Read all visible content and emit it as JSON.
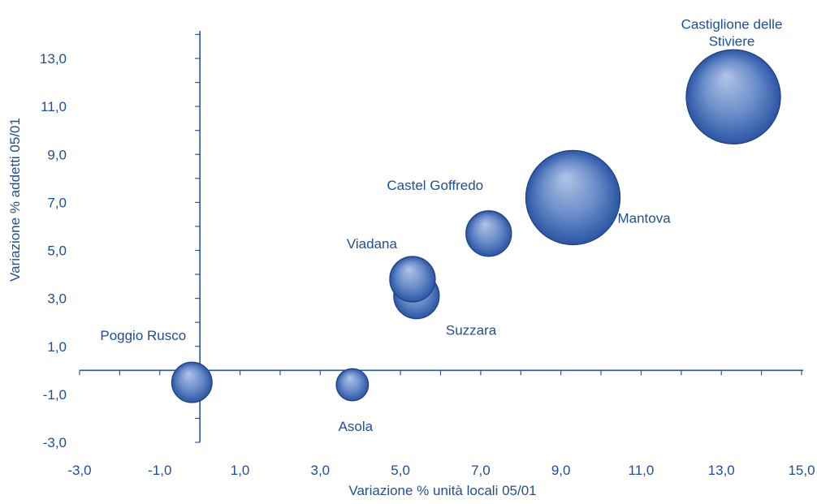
{
  "chart_data": {
    "type": "bubble",
    "title": "",
    "xlabel": "Variazione % unità locali 05/01",
    "ylabel": "Variazione % addetti 05/01",
    "xlim": [
      -3,
      15
    ],
    "ylim": [
      -3,
      14
    ],
    "x_ticks": [
      "-3,0",
      "-1,0",
      "1,0",
      "3,0",
      "5,0",
      "7,0",
      "9,0",
      "11,0",
      "13,0",
      "15,0"
    ],
    "y_ticks": [
      "-3,0",
      "-1,0",
      "1,0",
      "3,0",
      "5,0",
      "7,0",
      "9,0",
      "11,0",
      "13,0"
    ],
    "grid": false,
    "colors": {
      "bubble_dark": "#2b56a5",
      "bubble_light": "#b2c5e6",
      "stroke": "#1e3f80",
      "text": "#1f4e9a",
      "axis": "#2b56a5"
    },
    "points": [
      {
        "label": "Poggio Rusco",
        "x": -0.2,
        "y": -0.5,
        "size": 5.5,
        "label_pos": "upper-left"
      },
      {
        "label": "Asola",
        "x": 3.8,
        "y": -0.6,
        "size": 3.5,
        "label_pos": "below"
      },
      {
        "label": "Suzzara",
        "x": 5.4,
        "y": 3.1,
        "size": 7.0,
        "label_pos": "lower-right"
      },
      {
        "label": "Viadana",
        "x": 5.3,
        "y": 3.8,
        "size": 7.0,
        "label_pos": "upper-left"
      },
      {
        "label": "Castel Goffredo",
        "x": 7.2,
        "y": 5.7,
        "size": 7.0,
        "label_pos": "upper-left"
      },
      {
        "label": "Mantova",
        "x": 9.3,
        "y": 7.2,
        "size": 30.0,
        "label_pos": "right"
      },
      {
        "label": "Castiglione delle Stiviere",
        "label_lines": [
          "Castiglione delle",
          "Stiviere"
        ],
        "x": 13.3,
        "y": 11.4,
        "size": 30.0,
        "label_pos": "above"
      }
    ]
  }
}
